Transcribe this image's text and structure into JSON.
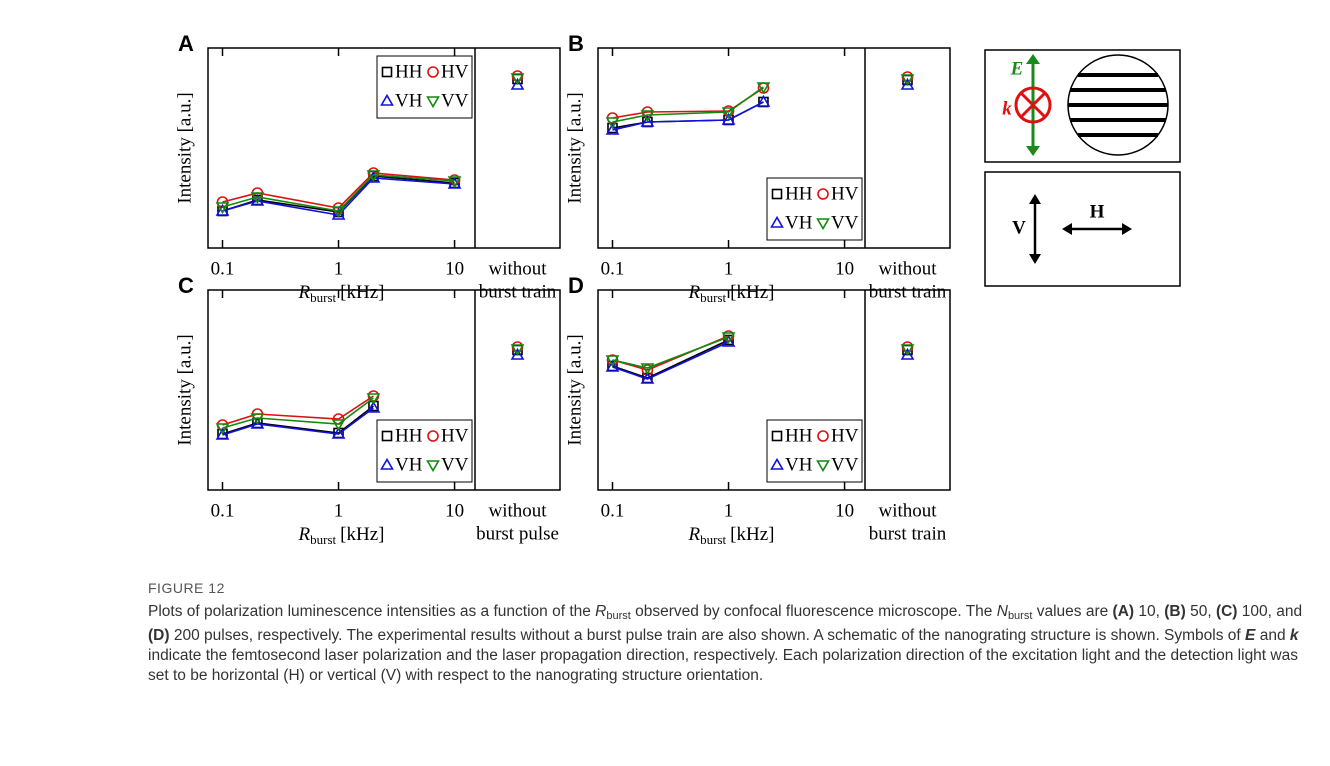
{
  "chart_data": [
    {
      "type": "line",
      "panel": "A",
      "y_label": "Intensity [a.u.]",
      "x_label": {
        "symbol": "R",
        "subscript": "burst",
        "unit": "[kHz]"
      },
      "xlog": true,
      "xlim": [
        0.075,
        15
      ],
      "xticks": [
        0.1,
        1,
        10
      ],
      "ylim": [
        0,
        1
      ],
      "legend": "upper right",
      "without_label": [
        "without",
        "burst train"
      ],
      "x": [
        0.1,
        0.2,
        1,
        2,
        10
      ],
      "series": [
        {
          "name": "HH",
          "color": "#000000",
          "marker": "square",
          "values": [
            0.185,
            0.24,
            0.18,
            0.36,
            0.325
          ],
          "without": 0.845
        },
        {
          "name": "HV",
          "color": "#e01010",
          "marker": "circle",
          "values": [
            0.23,
            0.275,
            0.2,
            0.375,
            0.34
          ],
          "without": 0.86
        },
        {
          "name": "VH",
          "color": "#1010e0",
          "marker": "triangle-up",
          "values": [
            0.185,
            0.235,
            0.165,
            0.35,
            0.32
          ],
          "without": 0.815
        },
        {
          "name": "VV",
          "color": "#108a10",
          "marker": "triangle-down",
          "values": [
            0.205,
            0.255,
            0.185,
            0.365,
            0.335
          ],
          "without": 0.85
        }
      ]
    },
    {
      "type": "line",
      "panel": "B",
      "y_label": "Intensity [a.u.]",
      "x_label": {
        "symbol": "R",
        "subscript": "burst",
        "unit": "[kHz]"
      },
      "xlog": true,
      "xlim": [
        0.075,
        15
      ],
      "xticks": [
        0.1,
        1,
        10
      ],
      "ylim": [
        0,
        1
      ],
      "legend": "lower right",
      "without_label": [
        "without",
        "burst train"
      ],
      "x": [
        0.1,
        0.2,
        1,
        2
      ],
      "series": [
        {
          "name": "HH",
          "color": "#000000",
          "marker": "square",
          "values": [
            0.6,
            0.63,
            0.64,
            0.73
          ],
          "without": 0.84
        },
        {
          "name": "HV",
          "color": "#e01010",
          "marker": "circle",
          "values": [
            0.65,
            0.68,
            0.685,
            0.8
          ],
          "without": 0.855
        },
        {
          "name": "VH",
          "color": "#1010e0",
          "marker": "triangle-up",
          "values": [
            0.59,
            0.63,
            0.64,
            0.73
          ],
          "without": 0.815
        },
        {
          "name": "VV",
          "color": "#108a10",
          "marker": "triangle-down",
          "values": [
            0.63,
            0.665,
            0.68,
            0.805
          ],
          "without": 0.845
        }
      ]
    },
    {
      "type": "line",
      "panel": "C",
      "y_label": "Intensity [a.u.]",
      "x_label": {
        "symbol": "R",
        "subscript": "burst",
        "unit": "[kHz]"
      },
      "xlog": true,
      "xlim": [
        0.075,
        15
      ],
      "xticks": [
        0.1,
        1,
        10
      ],
      "ylim": [
        0,
        1
      ],
      "legend": "lower right",
      "without_label": [
        "without",
        "burst pulse"
      ],
      "x": [
        0.1,
        0.2,
        1,
        2
      ],
      "series": [
        {
          "name": "HH",
          "color": "#000000",
          "marker": "square",
          "values": [
            0.28,
            0.335,
            0.285,
            0.42
          ],
          "without": 0.7
        },
        {
          "name": "HV",
          "color": "#e01010",
          "marker": "circle",
          "values": [
            0.325,
            0.38,
            0.355,
            0.47
          ],
          "without": 0.715
        },
        {
          "name": "VH",
          "color": "#1010e0",
          "marker": "triangle-up",
          "values": [
            0.275,
            0.33,
            0.28,
            0.41
          ],
          "without": 0.675
        },
        {
          "name": "VV",
          "color": "#108a10",
          "marker": "triangle-down",
          "values": [
            0.31,
            0.36,
            0.33,
            0.46
          ],
          "without": 0.705
        }
      ]
    },
    {
      "type": "line",
      "panel": "D",
      "y_label": "Intensity [a.u.]",
      "x_label": {
        "symbol": "R",
        "subscript": "burst",
        "unit": "[kHz]"
      },
      "xlog": true,
      "xlim": [
        0.075,
        15
      ],
      "xticks": [
        0.1,
        1,
        10
      ],
      "ylim": [
        0,
        1
      ],
      "legend": "lower right",
      "without_label": [
        "without",
        "burst train"
      ],
      "x": [
        0.1,
        0.2,
        1
      ],
      "series": [
        {
          "name": "HH",
          "color": "#000000",
          "marker": "square",
          "values": [
            0.62,
            0.56,
            0.75
          ],
          "without": 0.7
        },
        {
          "name": "HV",
          "color": "#e01010",
          "marker": "circle",
          "values": [
            0.65,
            0.6,
            0.77
          ],
          "without": 0.715
        },
        {
          "name": "VH",
          "color": "#1010e0",
          "marker": "triangle-up",
          "values": [
            0.615,
            0.555,
            0.74
          ],
          "without": 0.675
        },
        {
          "name": "VV",
          "color": "#108a10",
          "marker": "triangle-down",
          "values": [
            0.65,
            0.61,
            0.765
          ],
          "without": 0.705
        }
      ]
    }
  ],
  "schematic": {
    "e_label": "E",
    "k_label": "k",
    "v_label": "V",
    "h_label": "H"
  },
  "caption": {
    "label": "FIGURE 12",
    "runs": [
      {
        "text": "Plots of polarization luminescence intensities as a function of the ",
        "style": ""
      },
      {
        "text": "R",
        "style": "i"
      },
      {
        "text": "burst",
        "style": "sub"
      },
      {
        "text": " observed by confocal fluorescence microscope. The ",
        "style": ""
      },
      {
        "text": "N",
        "style": "i"
      },
      {
        "text": "burst",
        "style": "sub"
      },
      {
        "text": " values are ",
        "style": ""
      },
      {
        "text": "(A)",
        "style": "b"
      },
      {
        "text": " 10, ",
        "style": ""
      },
      {
        "text": "(B)",
        "style": "b"
      },
      {
        "text": " 50, ",
        "style": ""
      },
      {
        "text": "(C)",
        "style": "b"
      },
      {
        "text": " 100, and ",
        "style": ""
      },
      {
        "text": "(D)",
        "style": "b"
      },
      {
        "text": " 200 pulses, respectively. The experimental results without a burst pulse train are also shown. A schematic of the nanograting structure is shown. Symbols of ",
        "style": ""
      },
      {
        "text": "E",
        "style": "bi"
      },
      {
        "text": " and ",
        "style": ""
      },
      {
        "text": "k",
        "style": "bi"
      },
      {
        "text": " indicate the femtosecond laser polarization and the laser propagation direction, respectively. Each polarization direction of the excitation light and the detection light was set to be horizontal (H) or vertical (V) with respect to the nanograting structure orientation.",
        "style": ""
      }
    ]
  }
}
